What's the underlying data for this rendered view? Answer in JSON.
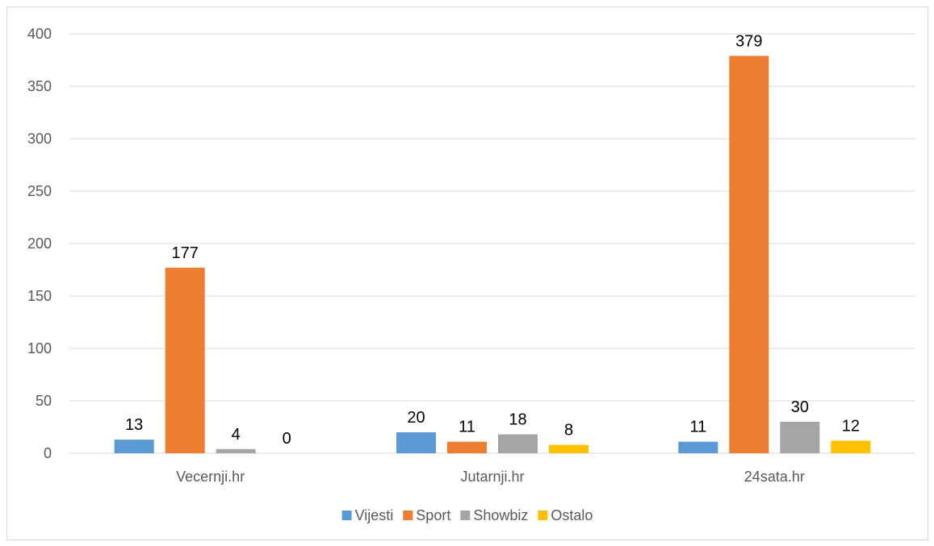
{
  "chart_data": {
    "type": "bar",
    "categories": [
      "Vecernji.hr",
      "Jutarnji.hr",
      "24sata.hr"
    ],
    "series": [
      {
        "name": "Vijesti",
        "color": "#5b9bd5",
        "values": [
          13,
          20,
          11
        ]
      },
      {
        "name": "Sport",
        "color": "#ed7d31",
        "values": [
          177,
          11,
          379
        ]
      },
      {
        "name": "Showbiz",
        "color": "#a5a5a5",
        "values": [
          4,
          18,
          30
        ]
      },
      {
        "name": "Ostalo",
        "color": "#ffc000",
        "values": [
          0,
          8,
          12
        ]
      }
    ],
    "ylim": [
      0,
      400
    ],
    "yticks": [
      "0",
      "50",
      "100",
      "150",
      "200",
      "250",
      "300",
      "350",
      "400"
    ],
    "grid": true,
    "legend_position": "bottom"
  }
}
